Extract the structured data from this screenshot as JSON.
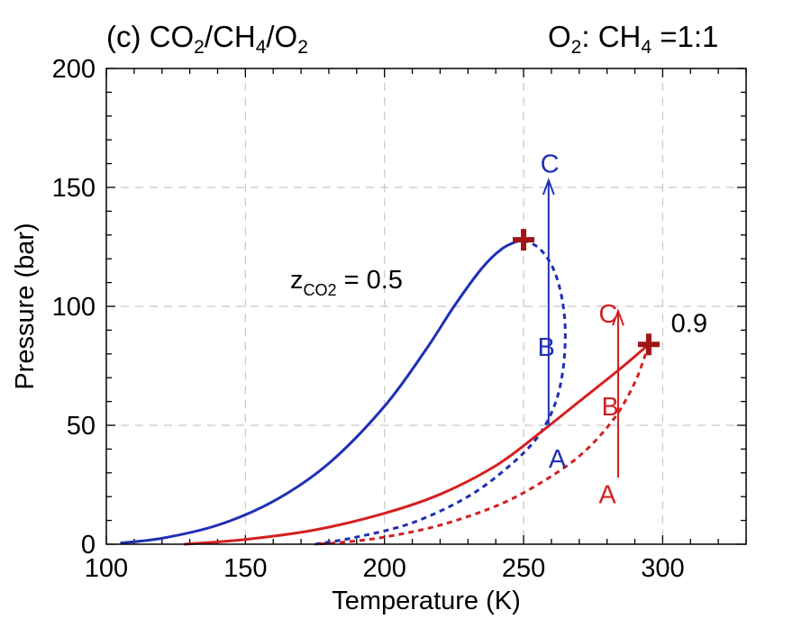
{
  "panel_title": {
    "prefix": "(c) CO",
    "s1": "2",
    "mid1": "/CH",
    "s2": "4",
    "mid2": "/O",
    "s3": "2"
  },
  "ratio_title": {
    "o": "O",
    "s1": "2",
    "mid": ": CH",
    "s2": "4",
    "tail": " =1:1"
  },
  "chart_data": {
    "type": "line",
    "xlabel": "Temperature (K)",
    "ylabel": "Pressure (bar)",
    "xlim": [
      100,
      330
    ],
    "ylim": [
      0,
      200
    ],
    "xticks": [
      100,
      150,
      200,
      250,
      300
    ],
    "yticks": [
      0,
      50,
      100,
      150,
      200
    ],
    "grid": true,
    "colors": {
      "blue": "#1f2fb5",
      "red": "#d42020",
      "critical": "#a01515"
    },
    "series": [
      {
        "color": "#1f2fb5",
        "style": "solid",
        "x": [
          105,
          120,
          140,
          160,
          180,
          200,
          215,
          225,
          235,
          242,
          248,
          250
        ],
        "y": [
          0.5,
          2.5,
          8,
          18,
          34,
          58,
          82,
          100,
          116,
          124,
          127.5,
          128
        ]
      },
      {
        "color": "#1f2fb5",
        "style": "dashed",
        "x": [
          250,
          256,
          261,
          264,
          265,
          264,
          261,
          255,
          245,
          230,
          210,
          190,
          175
        ],
        "y": [
          128,
          124,
          115,
          102,
          88,
          72,
          58,
          45,
          33,
          20,
          9,
          3,
          0
        ]
      },
      {
        "color": "#d42020",
        "style": "solid",
        "x": [
          128,
          150,
          175,
          200,
          220,
          240,
          255,
          270,
          285,
          295
        ],
        "y": [
          0,
          2,
          6,
          13,
          21,
          33,
          46,
          60,
          74,
          84
        ]
      },
      {
        "color": "#d42020",
        "style": "dashed",
        "x": [
          295,
          290,
          282,
          270,
          255,
          240,
          220,
          200,
          185,
          175
        ],
        "y": [
          84,
          68,
          52,
          37,
          25,
          16,
          8,
          3,
          0.8,
          0
        ]
      }
    ],
    "critical_points": [
      {
        "x": 250,
        "y": 128,
        "color": "#a01515"
      },
      {
        "x": 295,
        "y": 84,
        "color": "#a01515"
      }
    ],
    "paths": [
      {
        "x": 259,
        "y_from": 50,
        "y_to": 153,
        "color": "#1f2fb5"
      },
      {
        "x": 284,
        "y_from": 28,
        "y_to": 98,
        "color": "#d42020"
      }
    ],
    "annotations": [
      {
        "text": "C",
        "x": 256,
        "y": 160,
        "color": "#1f2fb5"
      },
      {
        "text": "B",
        "x": 255,
        "y": 83,
        "color": "#1f2fb5"
      },
      {
        "text": "A",
        "x": 259,
        "y": 36,
        "color": "#1f2fb5"
      },
      {
        "text": "C",
        "x": 277,
        "y": 97,
        "color": "#d42020"
      },
      {
        "text": "B",
        "x": 278,
        "y": 58,
        "color": "#d42020"
      },
      {
        "text": "A",
        "x": 277,
        "y": 21,
        "color": "#d42020"
      },
      {
        "text": "0.9",
        "x": 303,
        "y": 93,
        "color": "#000000"
      }
    ],
    "z_label": {
      "z": "z",
      "sub": "CO2",
      "rest": " = 0.5"
    }
  }
}
